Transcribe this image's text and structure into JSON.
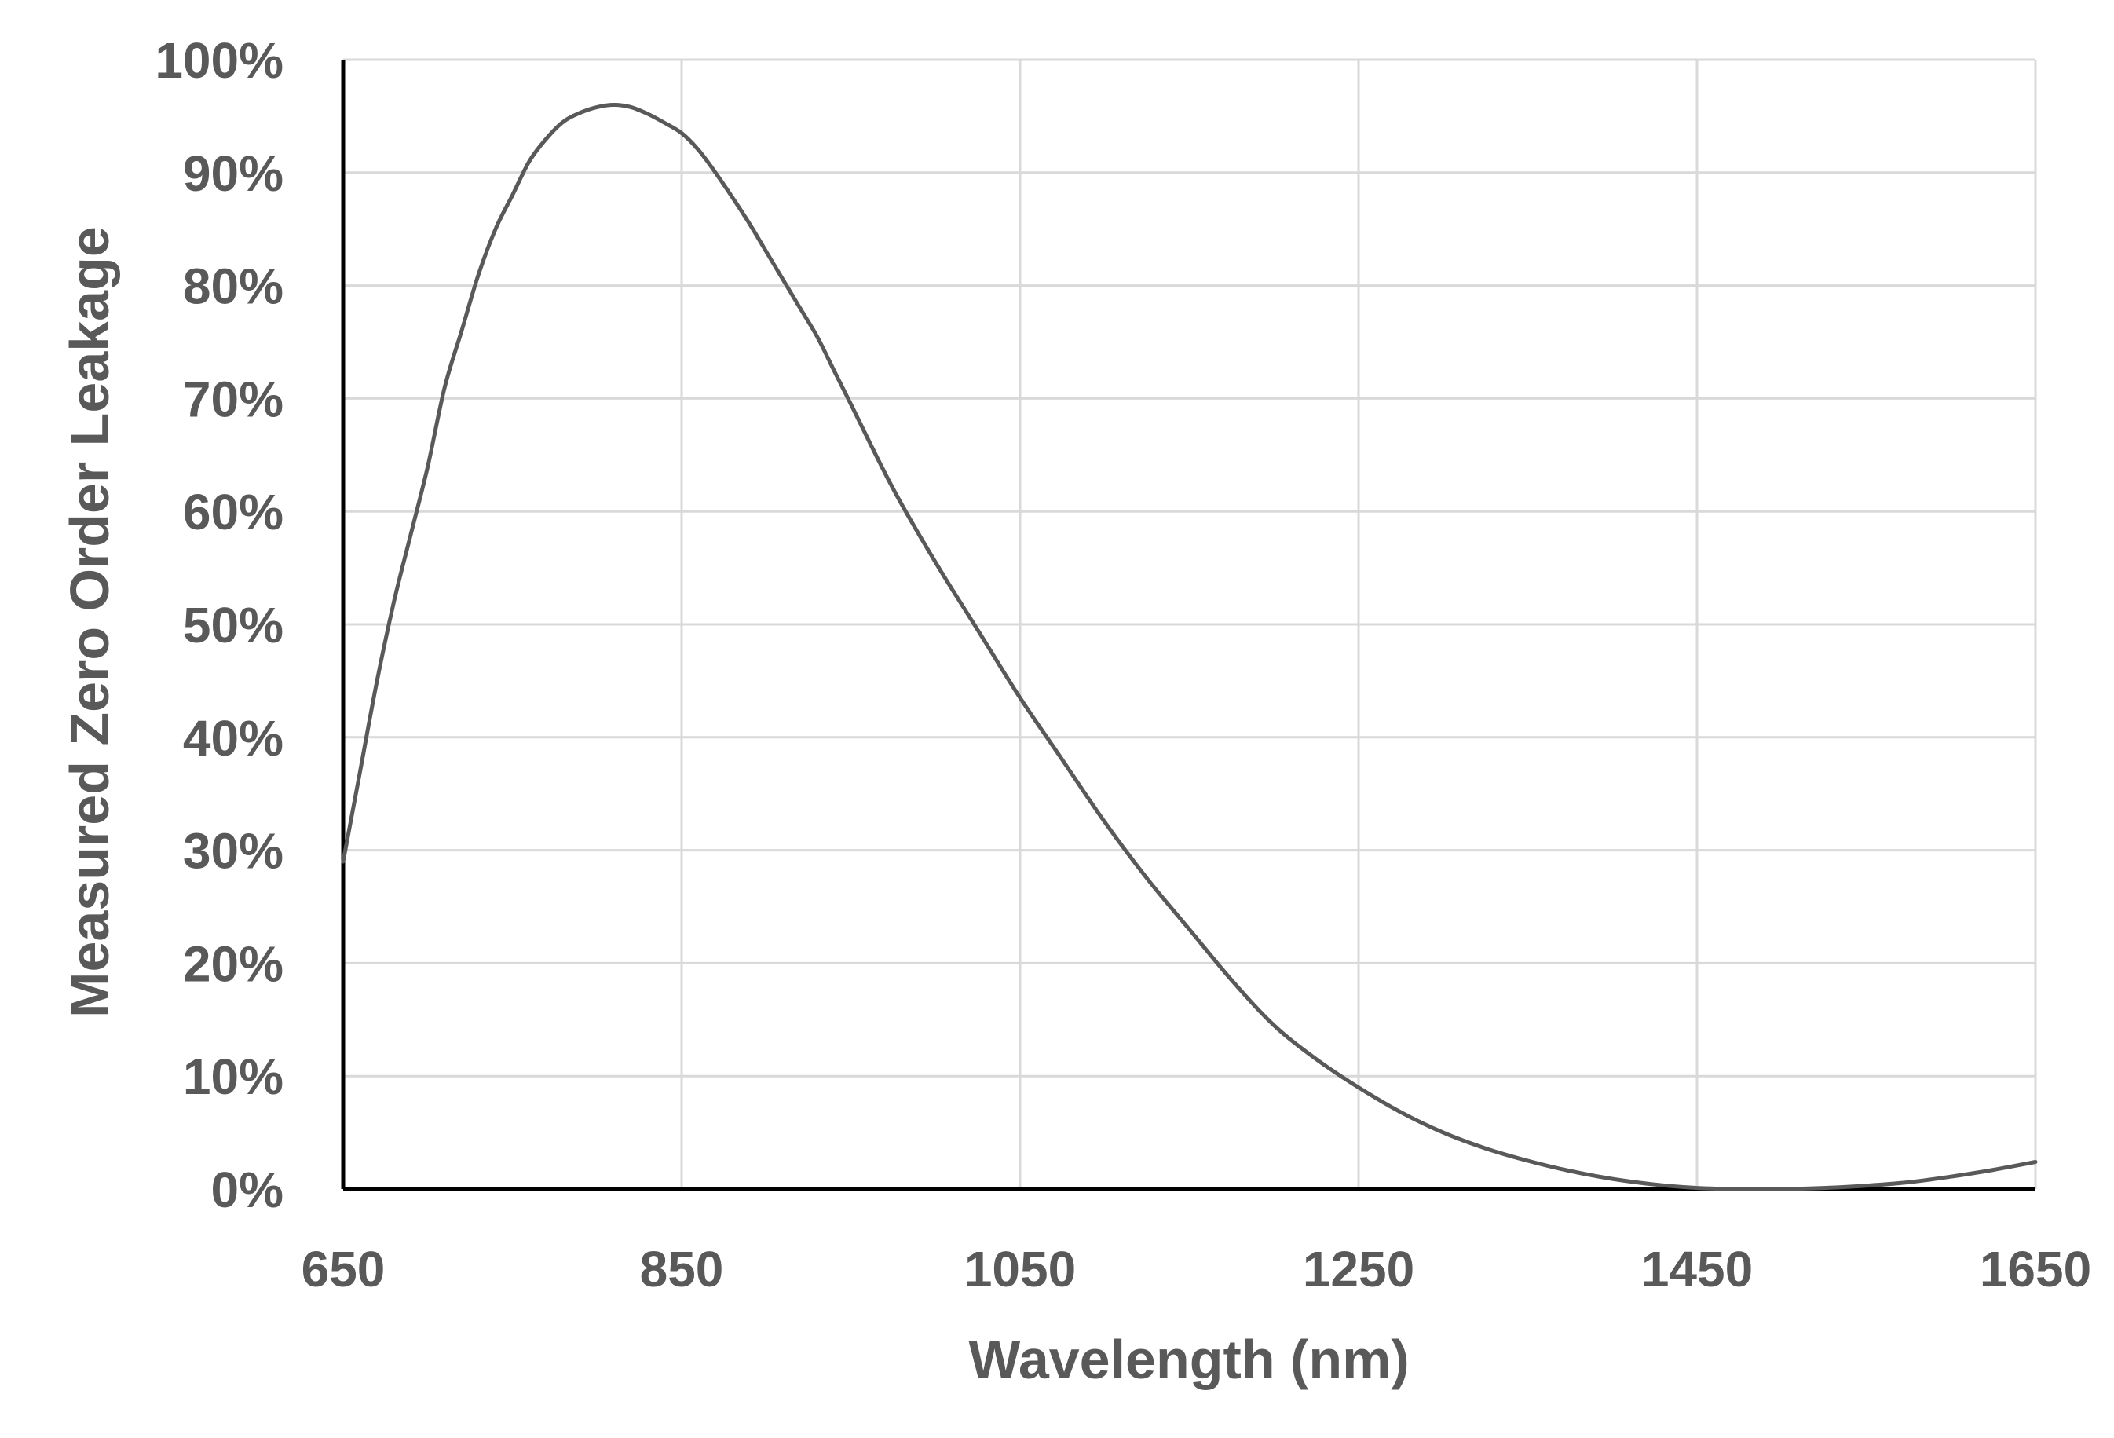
{
  "chart_data": {
    "type": "line",
    "title": "",
    "xlabel": "Wavelength (nm)",
    "ylabel": "Measured Zero Order Leakage",
    "xlim": [
      650,
      1650
    ],
    "ylim": [
      0,
      100
    ],
    "x_ticks": [
      650,
      850,
      1050,
      1250,
      1450,
      1650
    ],
    "x_tick_labels": [
      "650",
      "850",
      "1050",
      "1250",
      "1450",
      "1650"
    ],
    "y_ticks": [
      0,
      10,
      20,
      30,
      40,
      50,
      60,
      70,
      80,
      90,
      100
    ],
    "y_tick_labels": [
      "0%",
      "10%",
      "20%",
      "30%",
      "40%",
      "50%",
      "60%",
      "70%",
      "80%",
      "90%",
      "100%"
    ],
    "grid": true,
    "legend": "none",
    "colors": {
      "line": "#595959",
      "grid": "#d9d9d9",
      "axis": "#000000",
      "text": "#595959"
    },
    "series": [
      {
        "x": [
          650,
          660,
          670,
          680,
          690,
          700,
          710,
          720,
          730,
          740,
          750,
          760,
          770,
          780,
          790,
          800,
          810,
          820,
          830,
          840,
          850,
          860,
          870,
          880,
          890,
          900,
          910,
          920,
          930,
          940,
          950,
          975,
          1000,
          1025,
          1050,
          1075,
          1100,
          1125,
          1150,
          1175,
          1200,
          1225,
          1250,
          1275,
          1300,
          1325,
          1350,
          1375,
          1400,
          1425,
          1450,
          1475,
          1500,
          1525,
          1550,
          1575,
          1600,
          1625,
          1650
        ],
        "y": [
          29,
          37,
          45,
          52,
          58,
          64,
          71,
          76,
          81,
          85,
          88,
          91,
          93,
          94.5,
          95.3,
          95.8,
          96,
          95.8,
          95.2,
          94.4,
          93.5,
          92,
          90,
          87.8,
          85.5,
          83,
          80.5,
          78,
          75.5,
          72.5,
          69.5,
          62,
          55.5,
          49.5,
          43.5,
          38,
          32.5,
          27.5,
          23,
          18.5,
          14.5,
          11.5,
          9,
          6.8,
          5,
          3.6,
          2.5,
          1.6,
          0.9,
          0.4,
          0.1,
          0,
          0,
          0.1,
          0.3,
          0.6,
          1.1,
          1.7,
          2.4
        ]
      }
    ]
  }
}
